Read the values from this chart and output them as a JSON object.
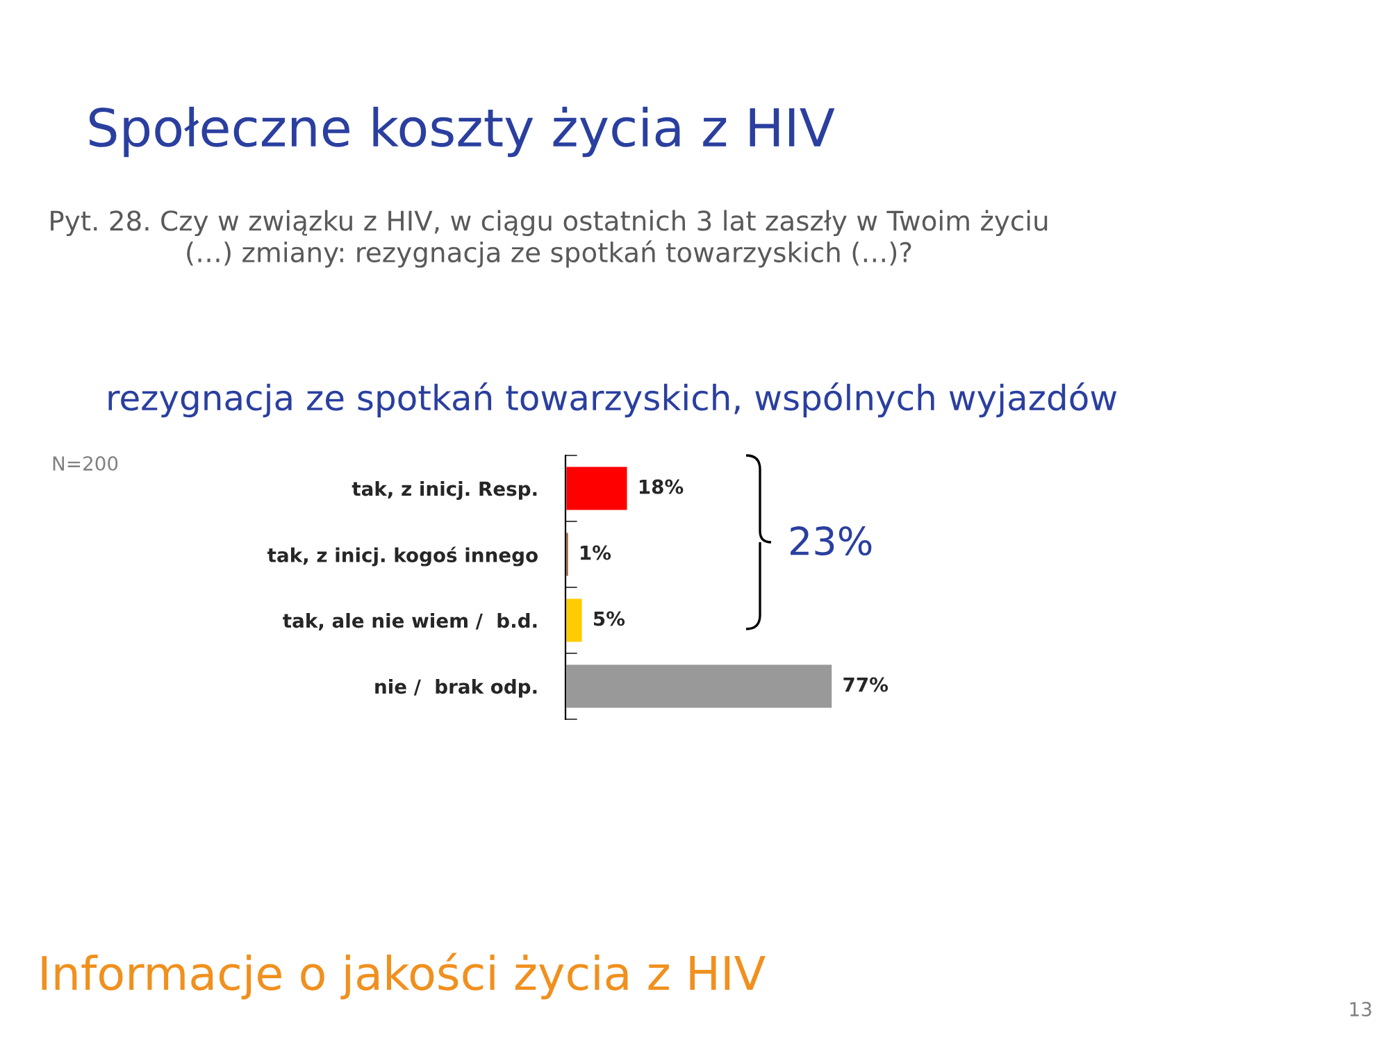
{
  "chart_data": {
    "type": "bar",
    "orientation": "horizontal",
    "title": "Społeczne koszty życia z HIV",
    "subtitle": "rezygnacja ze spotkań towarzyskich, wspólnych wyjazdów",
    "categories": [
      "tak, z inicj. Resp.",
      "tak, z inicj. kogoś innego",
      "tak, ale nie wiem /  b.d.",
      "nie /  brak odp."
    ],
    "values": [
      18,
      1,
      5,
      77
    ],
    "colors": [
      "#ff0000",
      "#a0522d",
      "#ffcc00",
      "#999999"
    ],
    "value_labels": [
      "18%",
      "1%",
      "5%",
      "77%"
    ],
    "annotations": [
      "Pyt. 28. Czy w związku z HIV, w ciągu ostatnich 3 lat zaszły w Twoim życiu\n(…) zmiany: rezygnacja ze spotkań towarzyskich (…)?",
      "N=200",
      "23%",
      "Informacje o jakości życia z HIV",
      "13"
    ],
    "grid": false,
    "legend": false
  }
}
